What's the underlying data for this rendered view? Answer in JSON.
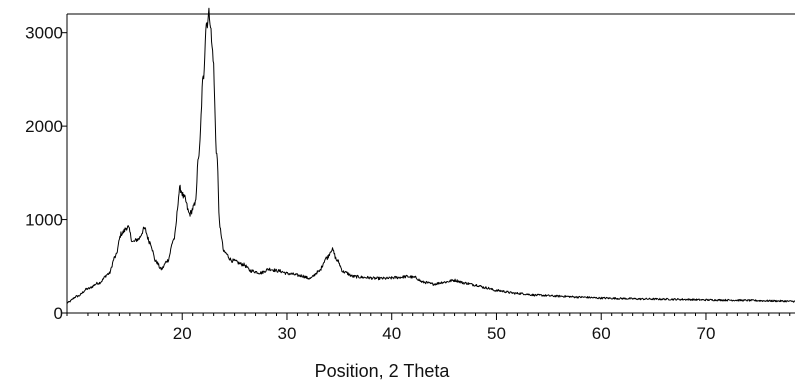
{
  "chart_data": {
    "type": "line",
    "title": "",
    "xlabel": "Position, 2 Theta",
    "ylabel": "",
    "xlim": [
      9,
      78.5
    ],
    "ylim": [
      0,
      3200
    ],
    "x_ticks": [
      20,
      30,
      40,
      50,
      60,
      70
    ],
    "y_ticks": [
      0,
      1000,
      2000,
      3000
    ],
    "grid": false,
    "series": [
      {
        "color": "#000000",
        "points": [
          [
            9.0,
            110
          ],
          [
            10.0,
            180
          ],
          [
            11.0,
            260
          ],
          [
            12.0,
            320
          ],
          [
            13.0,
            420
          ],
          [
            13.6,
            600
          ],
          [
            14.2,
            850
          ],
          [
            14.8,
            920
          ],
          [
            15.3,
            760
          ],
          [
            15.8,
            790
          ],
          [
            16.4,
            900
          ],
          [
            16.9,
            760
          ],
          [
            17.5,
            550
          ],
          [
            18.0,
            470
          ],
          [
            18.6,
            560
          ],
          [
            19.2,
            790
          ],
          [
            19.8,
            1330
          ],
          [
            20.2,
            1230
          ],
          [
            20.7,
            1060
          ],
          [
            21.2,
            1150
          ],
          [
            21.6,
            1700
          ],
          [
            22.0,
            2500
          ],
          [
            22.3,
            3100
          ],
          [
            22.6,
            3200
          ],
          [
            22.9,
            2800
          ],
          [
            23.3,
            1700
          ],
          [
            23.6,
            900
          ],
          [
            24.0,
            650
          ],
          [
            24.8,
            560
          ],
          [
            25.8,
            520
          ],
          [
            26.6,
            450
          ],
          [
            27.5,
            430
          ],
          [
            28.3,
            470
          ],
          [
            29.2,
            450
          ],
          [
            30.2,
            420
          ],
          [
            31.3,
            400
          ],
          [
            32.2,
            370
          ],
          [
            33.0,
            440
          ],
          [
            33.8,
            590
          ],
          [
            34.3,
            680
          ],
          [
            34.8,
            560
          ],
          [
            35.4,
            440
          ],
          [
            36.4,
            390
          ],
          [
            37.5,
            380
          ],
          [
            38.5,
            370
          ],
          [
            39.5,
            370
          ],
          [
            40.5,
            380
          ],
          [
            41.5,
            390
          ],
          [
            42.2,
            380
          ],
          [
            43.0,
            330
          ],
          [
            44.0,
            310
          ],
          [
            45.0,
            330
          ],
          [
            46.0,
            350
          ],
          [
            47.0,
            320
          ],
          [
            48.0,
            300
          ],
          [
            49.0,
            270
          ],
          [
            50.0,
            240
          ],
          [
            52.0,
            210
          ],
          [
            54.0,
            190
          ],
          [
            56.0,
            180
          ],
          [
            58.0,
            170
          ],
          [
            60.0,
            160
          ],
          [
            62.0,
            155
          ],
          [
            64.0,
            150
          ],
          [
            66.0,
            148
          ],
          [
            68.0,
            145
          ],
          [
            70.0,
            140
          ],
          [
            72.0,
            138
          ],
          [
            74.0,
            135
          ],
          [
            76.0,
            130
          ],
          [
            78.5,
            125
          ]
        ]
      }
    ]
  }
}
